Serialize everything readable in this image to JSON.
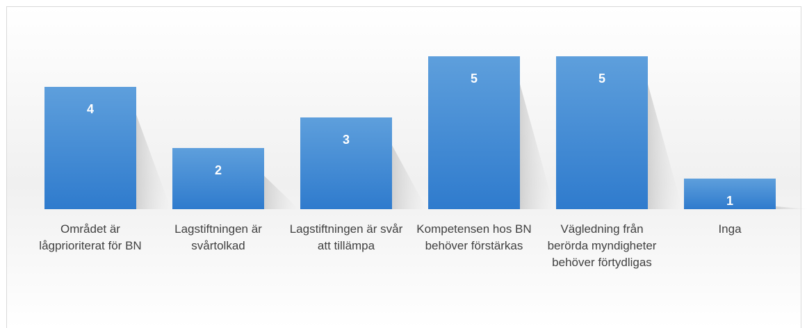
{
  "chart_data": {
    "type": "bar",
    "categories": [
      "Området är lågprioriterat för BN",
      "Lagstiftningen är svårtolkad",
      "Lagstiftningen är svår att tillämpa",
      "Kompetensen hos BN behöver förstärkas",
      "Vägledning från berörda myndigheter behöver förtydligas",
      "Inga"
    ],
    "values": [
      4,
      2,
      3,
      5,
      5,
      1
    ],
    "color": "#4a8fd8"
  }
}
